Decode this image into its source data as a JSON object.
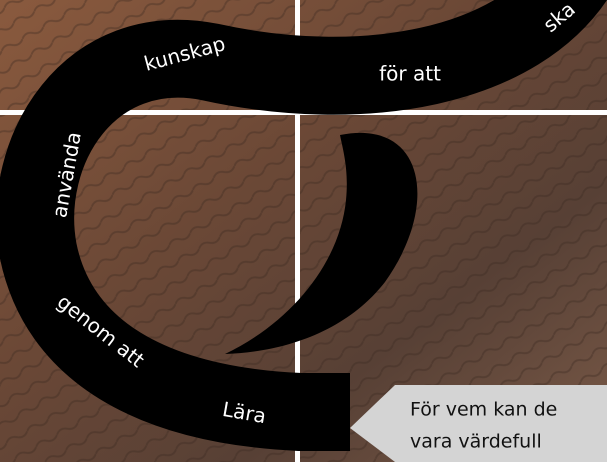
{
  "swirl": {
    "words": [
      "ska",
      "kunskap",
      "för att",
      "använda",
      "genom att",
      "Lära"
    ]
  },
  "callout": {
    "lines": [
      "För vem kan de",
      "vara värdefull"
    ]
  }
}
